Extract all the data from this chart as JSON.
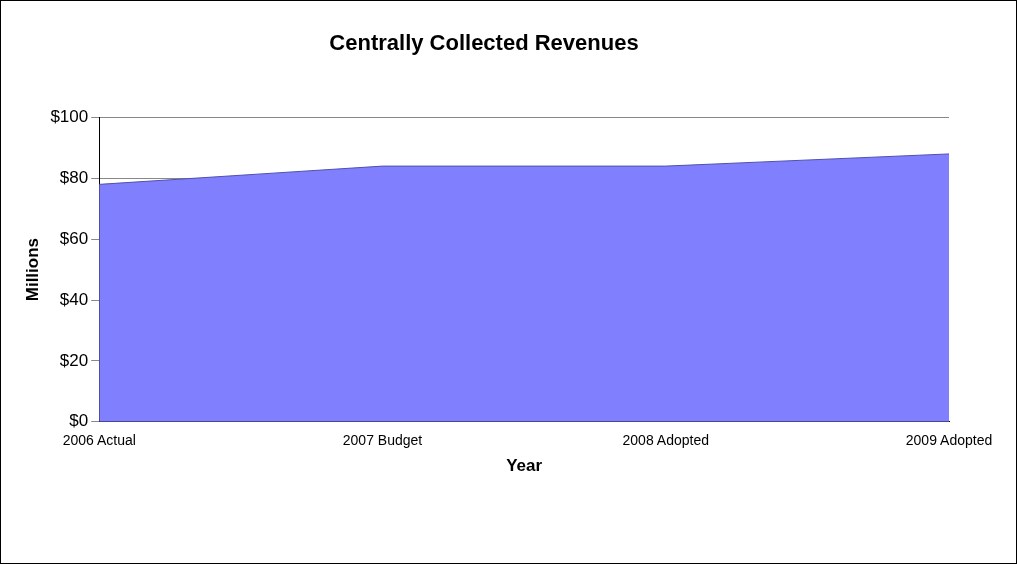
{
  "chart_data": {
    "type": "area",
    "title": "Centrally Collected Revenues",
    "xlabel": "Year",
    "ylabel": "Millions",
    "categories": [
      "2006 Actual",
      "2007 Budget",
      "2008 Adopted",
      "2009 Adopted"
    ],
    "series": [
      {
        "color": "#8080ff",
        "values": [
          78,
          84,
          84,
          88
        ]
      }
    ],
    "ylim": [
      0,
      100
    ],
    "yticks": [
      {
        "value": 0,
        "label": "$0"
      },
      {
        "value": 20,
        "label": "$20"
      },
      {
        "value": 40,
        "label": "$40"
      },
      {
        "value": 60,
        "label": "$60"
      },
      {
        "value": 80,
        "label": "$80"
      },
      {
        "value": 100,
        "label": "$100"
      }
    ],
    "grid": "y",
    "legend": false
  }
}
